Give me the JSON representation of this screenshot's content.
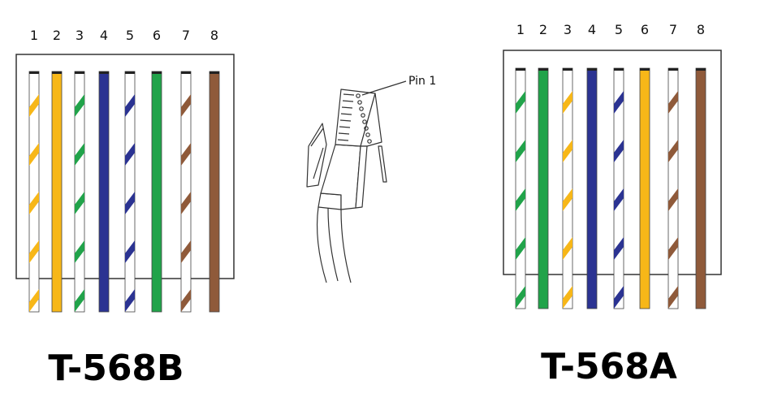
{
  "colors": {
    "orange": "#f7b718",
    "green": "#21a34a",
    "blue": "#2b3392",
    "brown": "#8f5a3a",
    "white": "#ffffff",
    "outline": "#333333"
  },
  "left_panel": {
    "title": "T-568B",
    "pins": [
      {
        "num": "1",
        "color": "orange",
        "striped": true
      },
      {
        "num": "2",
        "color": "orange",
        "striped": false
      },
      {
        "num": "3",
        "color": "green",
        "striped": true
      },
      {
        "num": "4",
        "color": "blue",
        "striped": false
      },
      {
        "num": "5",
        "color": "blue",
        "striped": true
      },
      {
        "num": "6",
        "color": "green",
        "striped": false
      },
      {
        "num": "7",
        "color": "brown",
        "striped": true
      },
      {
        "num": "8",
        "color": "brown",
        "striped": false
      }
    ]
  },
  "right_panel": {
    "title": "T-568A",
    "pins": [
      {
        "num": "1",
        "color": "green",
        "striped": true
      },
      {
        "num": "2",
        "color": "green",
        "striped": false
      },
      {
        "num": "3",
        "color": "orange",
        "striped": true
      },
      {
        "num": "4",
        "color": "blue",
        "striped": false
      },
      {
        "num": "5",
        "color": "blue",
        "striped": true
      },
      {
        "num": "6",
        "color": "orange",
        "striped": false
      },
      {
        "num": "7",
        "color": "brown",
        "striped": true
      },
      {
        "num": "8",
        "color": "brown",
        "striped": false
      }
    ]
  },
  "connector": {
    "pin1_label": "Pin 1",
    "icon": "rj45-connector-icon"
  }
}
